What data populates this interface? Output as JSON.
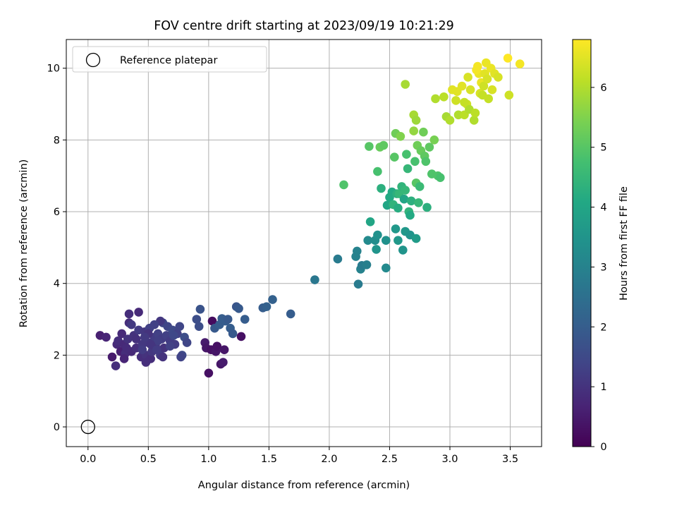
{
  "chart_data": {
    "type": "scatter",
    "title": "FOV centre drift starting at 2023/09/19 10:21:29",
    "xlabel": "Angular distance from reference (arcmin)",
    "ylabel": "Rotation from reference (arcmin)",
    "xlim": [
      -0.18,
      3.76
    ],
    "ylim": [
      -0.55,
      10.8
    ],
    "xticks": [
      0.0,
      0.5,
      1.0,
      1.5,
      2.0,
      2.5,
      3.0,
      3.5
    ],
    "xticklabels": [
      "0.0",
      "0.5",
      "1.0",
      "1.5",
      "2.0",
      "2.5",
      "3.0",
      "3.5"
    ],
    "yticks": [
      0,
      2,
      4,
      6,
      8,
      10
    ],
    "yticklabels": [
      "0",
      "2",
      "4",
      "6",
      "8",
      "10"
    ],
    "grid": true,
    "legend": {
      "position": "top-left",
      "entries": [
        "Reference platepar"
      ]
    },
    "colorbar": {
      "label": "Hours from first FF file",
      "colormap": "viridis",
      "range": [
        0,
        6.8
      ],
      "ticks": [
        0,
        1,
        2,
        3,
        4,
        5,
        6
      ],
      "ticklabels": [
        "0",
        "1",
        "2",
        "3",
        "4",
        "5",
        "6"
      ]
    },
    "reference_point": {
      "name": "Reference platepar",
      "x": 0.0,
      "y": 0.0,
      "marker": "open-circle"
    },
    "points": [
      [
        0.1,
        2.55,
        0.6
      ],
      [
        0.15,
        2.5,
        0.7
      ],
      [
        0.2,
        1.95,
        0.5
      ],
      [
        0.24,
        2.3,
        0.8
      ],
      [
        0.25,
        2.4,
        0.9
      ],
      [
        0.27,
        2.1,
        0.6
      ],
      [
        0.28,
        2.6,
        0.8
      ],
      [
        0.3,
        2.3,
        0.8
      ],
      [
        0.31,
        2.05,
        0.9
      ],
      [
        0.33,
        2.45,
        1.0
      ],
      [
        0.34,
        2.9,
        0.9
      ],
      [
        0.36,
        2.1,
        0.8
      ],
      [
        0.38,
        2.55,
        1.0
      ],
      [
        0.4,
        2.2,
        0.9
      ],
      [
        0.42,
        2.7,
        1.2
      ],
      [
        0.44,
        1.95,
        0.9
      ],
      [
        0.45,
        2.3,
        1.1
      ],
      [
        0.47,
        2.65,
        1.1
      ],
      [
        0.48,
        2.0,
        1.0
      ],
      [
        0.5,
        2.35,
        1.1
      ],
      [
        0.51,
        2.75,
        1.3
      ],
      [
        0.52,
        1.9,
        0.9
      ],
      [
        0.53,
        2.1,
        1.1
      ],
      [
        0.55,
        2.5,
        1.2
      ],
      [
        0.56,
        2.25,
        1.0
      ],
      [
        0.58,
        2.6,
        1.3
      ],
      [
        0.6,
        2.0,
        1.2
      ],
      [
        0.61,
        2.45,
        1.2
      ],
      [
        0.62,
        2.9,
        1.4
      ],
      [
        0.63,
        2.2,
        1.0
      ],
      [
        0.65,
        2.55,
        1.3
      ],
      [
        0.66,
        2.8,
        1.4
      ],
      [
        0.68,
        2.4,
        1.2
      ],
      [
        0.7,
        2.7,
        1.5
      ],
      [
        0.72,
        2.3,
        1.2
      ],
      [
        0.74,
        2.6,
        1.3
      ],
      [
        0.76,
        2.8,
        1.4
      ],
      [
        0.78,
        2.0,
        1.5
      ],
      [
        0.8,
        2.5,
        1.6
      ],
      [
        0.82,
        2.35,
        1.4
      ],
      [
        0.34,
        3.15,
        0.9
      ],
      [
        0.42,
        3.2,
        0.8
      ],
      [
        0.3,
        1.9,
        0.7
      ],
      [
        0.23,
        1.7,
        0.9
      ],
      [
        0.48,
        1.8,
        0.9
      ],
      [
        0.62,
        1.95,
        1.0
      ],
      [
        0.6,
        2.95,
        1.1
      ],
      [
        0.55,
        2.85,
        1.3
      ],
      [
        0.5,
        2.6,
        1.0
      ],
      [
        0.45,
        2.15,
        1.2
      ],
      [
        0.4,
        2.45,
        0.95
      ],
      [
        0.36,
        2.85,
        1.15
      ],
      [
        0.32,
        2.2,
        0.85
      ],
      [
        0.58,
        2.4,
        1.25
      ],
      [
        0.68,
        2.25,
        1.3
      ],
      [
        0.52,
        2.3,
        1.05
      ],
      [
        0.47,
        2.5,
        1.15
      ],
      [
        0.57,
        2.15,
        1.2
      ],
      [
        0.77,
        1.95,
        1.35
      ],
      [
        0.71,
        2.55,
        1.45
      ],
      [
        0.9,
        3.0,
        1.6
      ],
      [
        0.92,
        2.8,
        1.6
      ],
      [
        0.93,
        3.28,
        1.75
      ],
      [
        0.97,
        2.35,
        0.5
      ],
      [
        0.98,
        2.2,
        0.4
      ],
      [
        1.0,
        1.5,
        0.3
      ],
      [
        1.02,
        2.15,
        0.3
      ],
      [
        1.03,
        2.95,
        0.2
      ],
      [
        1.05,
        2.75,
        1.9
      ],
      [
        1.06,
        2.1,
        0.4
      ],
      [
        1.07,
        2.25,
        0.3
      ],
      [
        1.09,
        2.85,
        2.0
      ],
      [
        1.1,
        1.75,
        0.4
      ],
      [
        1.11,
        3.02,
        2.0
      ],
      [
        1.12,
        1.8,
        0.5
      ],
      [
        1.13,
        2.15,
        0.4
      ],
      [
        1.14,
        2.95,
        2.0
      ],
      [
        1.16,
        3.0,
        1.9
      ],
      [
        1.18,
        2.75,
        2.0
      ],
      [
        1.2,
        2.6,
        1.9
      ],
      [
        1.23,
        3.35,
        1.8
      ],
      [
        1.25,
        3.3,
        1.9
      ],
      [
        1.27,
        2.52,
        0.3
      ],
      [
        1.3,
        3.0,
        2.0
      ],
      [
        1.45,
        3.32,
        2.0
      ],
      [
        1.48,
        3.35,
        2.1
      ],
      [
        1.53,
        3.55,
        2.1
      ],
      [
        1.68,
        3.15,
        2.0
      ],
      [
        1.88,
        4.1,
        2.7
      ],
      [
        2.07,
        4.68,
        2.8
      ],
      [
        2.22,
        4.75,
        3.0
      ],
      [
        2.23,
        4.9,
        3.0
      ],
      [
        2.24,
        3.98,
        2.8
      ],
      [
        2.26,
        4.4,
        3.0
      ],
      [
        2.27,
        4.5,
        2.8
      ],
      [
        2.31,
        4.52,
        2.9
      ],
      [
        2.32,
        5.2,
        3.2
      ],
      [
        2.34,
        5.72,
        4.0
      ],
      [
        2.38,
        5.2,
        3.3
      ],
      [
        2.39,
        4.95,
        3.5
      ],
      [
        2.4,
        5.35,
        3.4
      ],
      [
        2.47,
        5.2,
        3.4
      ],
      [
        2.47,
        4.43,
        3.2
      ],
      [
        2.55,
        5.52,
        3.6
      ],
      [
        2.57,
        5.2,
        3.6
      ],
      [
        2.61,
        4.93,
        3.5
      ],
      [
        2.63,
        5.45,
        3.6
      ],
      [
        2.67,
        5.35,
        3.5
      ],
      [
        2.72,
        5.25,
        3.7
      ],
      [
        2.12,
        6.75,
        4.9
      ],
      [
        2.33,
        7.82,
        5.0
      ],
      [
        2.4,
        7.12,
        4.8
      ],
      [
        2.42,
        7.8,
        5.2
      ],
      [
        2.45,
        7.85,
        5.1
      ],
      [
        2.43,
        6.65,
        4.3
      ],
      [
        2.48,
        6.18,
        4.0
      ],
      [
        2.5,
        6.4,
        4.1
      ],
      [
        2.52,
        6.55,
        4.1
      ],
      [
        2.53,
        6.2,
        4.4
      ],
      [
        2.54,
        7.52,
        5.0
      ],
      [
        2.55,
        8.18,
        5.3
      ],
      [
        2.56,
        6.5,
        4.3
      ],
      [
        2.57,
        6.1,
        4.2
      ],
      [
        2.58,
        6.5,
        4.5
      ],
      [
        2.59,
        8.1,
        5.5
      ],
      [
        2.6,
        6.7,
        4.4
      ],
      [
        2.62,
        6.35,
        4.0
      ],
      [
        2.63,
        6.6,
        4.5
      ],
      [
        2.64,
        7.6,
        4.8
      ],
      [
        2.65,
        7.2,
        4.5
      ],
      [
        2.66,
        6.0,
        4.4
      ],
      [
        2.67,
        5.9,
        4.1
      ],
      [
        2.68,
        6.3,
        4.3
      ],
      [
        2.7,
        8.25,
        5.7
      ],
      [
        2.71,
        7.4,
        4.8
      ],
      [
        2.72,
        6.8,
        5.0
      ],
      [
        2.73,
        7.85,
        5.3
      ],
      [
        2.74,
        6.25,
        4.5
      ],
      [
        2.75,
        6.7,
        4.6
      ],
      [
        2.76,
        7.7,
        5.2
      ],
      [
        2.78,
        8.22,
        5.3
      ],
      [
        2.79,
        7.55,
        5.1
      ],
      [
        2.8,
        7.4,
        4.9
      ],
      [
        2.81,
        6.12,
        4.3
      ],
      [
        2.83,
        7.8,
        5.1
      ],
      [
        2.85,
        7.05,
        4.9
      ],
      [
        2.87,
        8.0,
        5.4
      ],
      [
        2.9,
        7.0,
        4.9
      ],
      [
        2.92,
        6.95,
        4.8
      ],
      [
        2.63,
        9.55,
        5.9
      ],
      [
        2.7,
        8.7,
        5.9
      ],
      [
        2.72,
        8.55,
        5.8
      ],
      [
        2.88,
        9.15,
        6.0
      ],
      [
        2.95,
        9.2,
        6.1
      ],
      [
        2.97,
        8.65,
        5.9
      ],
      [
        3.0,
        8.55,
        6.0
      ],
      [
        3.02,
        9.4,
        6.5
      ],
      [
        3.05,
        9.1,
        6.3
      ],
      [
        3.07,
        8.7,
        6.0
      ],
      [
        3.1,
        9.5,
        6.5
      ],
      [
        3.12,
        8.7,
        6.1
      ],
      [
        3.14,
        9.0,
        6.3
      ],
      [
        3.15,
        9.75,
        6.4
      ],
      [
        3.16,
        8.85,
        6.0
      ],
      [
        3.17,
        9.4,
        6.4
      ],
      [
        3.2,
        8.55,
        6.0
      ],
      [
        3.21,
        8.75,
        6.1
      ],
      [
        3.23,
        10.05,
        6.7
      ],
      [
        3.24,
        9.85,
        6.6
      ],
      [
        3.25,
        9.3,
        6.4
      ],
      [
        3.26,
        9.6,
        6.6
      ],
      [
        3.27,
        9.25,
        6.2
      ],
      [
        3.28,
        9.5,
        6.3
      ],
      [
        3.29,
        9.85,
        6.5
      ],
      [
        3.3,
        10.15,
        6.6
      ],
      [
        3.31,
        9.7,
        6.4
      ],
      [
        3.32,
        9.15,
        6.2
      ],
      [
        3.34,
        10.0,
        6.6
      ],
      [
        3.35,
        9.4,
        6.4
      ],
      [
        3.37,
        9.85,
        6.5
      ],
      [
        3.4,
        9.75,
        6.4
      ],
      [
        3.48,
        10.28,
        6.8
      ],
      [
        3.49,
        9.25,
        6.3
      ],
      [
        3.58,
        10.12,
        6.7
      ],
      [
        3.22,
        9.95,
        6.7
      ],
      [
        3.12,
        9.05,
        6.2
      ],
      [
        3.06,
        9.35,
        6.5
      ]
    ]
  }
}
